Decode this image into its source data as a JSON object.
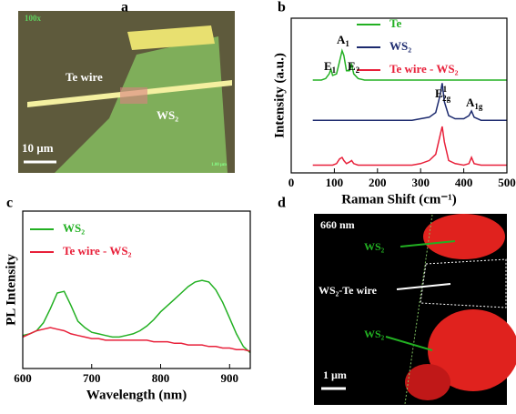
{
  "panel_labels": [
    "a",
    "b",
    "c",
    "d"
  ],
  "image_a": {
    "labels": [
      "100x",
      "Te wire",
      "WS₂",
      "10 µm",
      "1.00 µm"
    ]
  },
  "image_d": {
    "labels": [
      "660 nm",
      "WS₂",
      "WS₂-Te wire",
      "WS₂",
      "1 µm"
    ]
  },
  "chart_data": [
    {
      "type": "line",
      "xlabel": "Raman Shift (cm⁻¹)",
      "ylabel": "Intensity (a.u.)",
      "x": [
        50,
        60,
        70,
        80,
        88,
        92,
        96,
        105,
        112,
        118,
        122,
        128,
        135,
        140,
        145,
        155,
        170,
        190,
        220,
        250,
        280,
        300,
        320,
        335,
        345,
        350,
        355,
        365,
        380,
        400,
        412,
        418,
        424,
        440,
        460,
        480,
        500
      ],
      "series": [
        {
          "name": "Te",
          "color": "#22b022",
          "values": [
            0.6,
            0.6,
            0.6,
            0.61,
            0.64,
            0.67,
            0.63,
            0.64,
            0.72,
            0.79,
            0.76,
            0.66,
            0.66,
            0.7,
            0.64,
            0.61,
            0.6,
            0.6,
            0.6,
            0.6,
            0.6,
            0.6,
            0.6,
            0.6,
            0.6,
            0.6,
            0.6,
            0.6,
            0.6,
            0.6,
            0.6,
            0.6,
            0.6,
            0.6,
            0.6,
            0.6,
            0.6
          ]
        },
        {
          "name": "WS₂",
          "color": "#1c2a6e",
          "values": [
            0.34,
            0.34,
            0.34,
            0.34,
            0.34,
            0.34,
            0.34,
            0.34,
            0.34,
            0.34,
            0.34,
            0.34,
            0.34,
            0.34,
            0.34,
            0.34,
            0.34,
            0.34,
            0.34,
            0.34,
            0.34,
            0.35,
            0.36,
            0.39,
            0.5,
            0.58,
            0.46,
            0.37,
            0.35,
            0.35,
            0.37,
            0.4,
            0.36,
            0.34,
            0.34,
            0.34,
            0.34
          ]
        },
        {
          "name": "Te wire - WS₂",
          "color": "#e8203a",
          "values": [
            0.05,
            0.05,
            0.05,
            0.05,
            0.05,
            0.05,
            0.05,
            0.06,
            0.09,
            0.1,
            0.08,
            0.06,
            0.07,
            0.08,
            0.06,
            0.05,
            0.05,
            0.05,
            0.05,
            0.05,
            0.05,
            0.06,
            0.08,
            0.12,
            0.24,
            0.3,
            0.2,
            0.08,
            0.06,
            0.05,
            0.06,
            0.1,
            0.06,
            0.05,
            0.05,
            0.05,
            0.05
          ]
        }
      ],
      "annotations": [
        {
          "text": "E",
          "sub": "1"
        },
        {
          "text": "A",
          "sub": "1"
        },
        {
          "text": "E",
          "sub": "2"
        },
        {
          "text": "E",
          "sup": "1",
          "sub": "2g"
        },
        {
          "text": "A",
          "sub": "1g"
        }
      ],
      "xlim": [
        0,
        500
      ],
      "xticks": [
        0,
        100,
        200,
        300,
        400,
        500
      ],
      "ylim": [
        0,
        1
      ]
    },
    {
      "type": "line",
      "xlabel": "Wavelength (nm)",
      "ylabel": "PL Intensity",
      "x": [
        600,
        610,
        620,
        630,
        640,
        650,
        660,
        670,
        680,
        690,
        700,
        710,
        720,
        730,
        740,
        750,
        760,
        770,
        780,
        790,
        800,
        810,
        820,
        830,
        840,
        850,
        860,
        870,
        880,
        890,
        900,
        910,
        920,
        930
      ],
      "series": [
        {
          "name": "WS₂",
          "color": "#22b022",
          "values": [
            0.21,
            0.22,
            0.24,
            0.29,
            0.38,
            0.48,
            0.49,
            0.4,
            0.3,
            0.26,
            0.23,
            0.22,
            0.21,
            0.2,
            0.2,
            0.21,
            0.22,
            0.24,
            0.27,
            0.31,
            0.36,
            0.4,
            0.44,
            0.48,
            0.52,
            0.55,
            0.56,
            0.55,
            0.5,
            0.42,
            0.32,
            0.22,
            0.14,
            0.1
          ]
        },
        {
          "name": "Te wire - WS₂",
          "color": "#e8203a",
          "values": [
            0.2,
            0.22,
            0.24,
            0.25,
            0.26,
            0.25,
            0.24,
            0.22,
            0.21,
            0.2,
            0.19,
            0.19,
            0.18,
            0.18,
            0.18,
            0.18,
            0.18,
            0.18,
            0.18,
            0.17,
            0.17,
            0.17,
            0.16,
            0.16,
            0.15,
            0.15,
            0.15,
            0.14,
            0.14,
            0.13,
            0.13,
            0.12,
            0.12,
            0.11
          ]
        }
      ],
      "xlim": [
        600,
        930
      ],
      "xticks": [
        600,
        700,
        800,
        900
      ],
      "ylim": [
        0,
        1
      ]
    }
  ]
}
